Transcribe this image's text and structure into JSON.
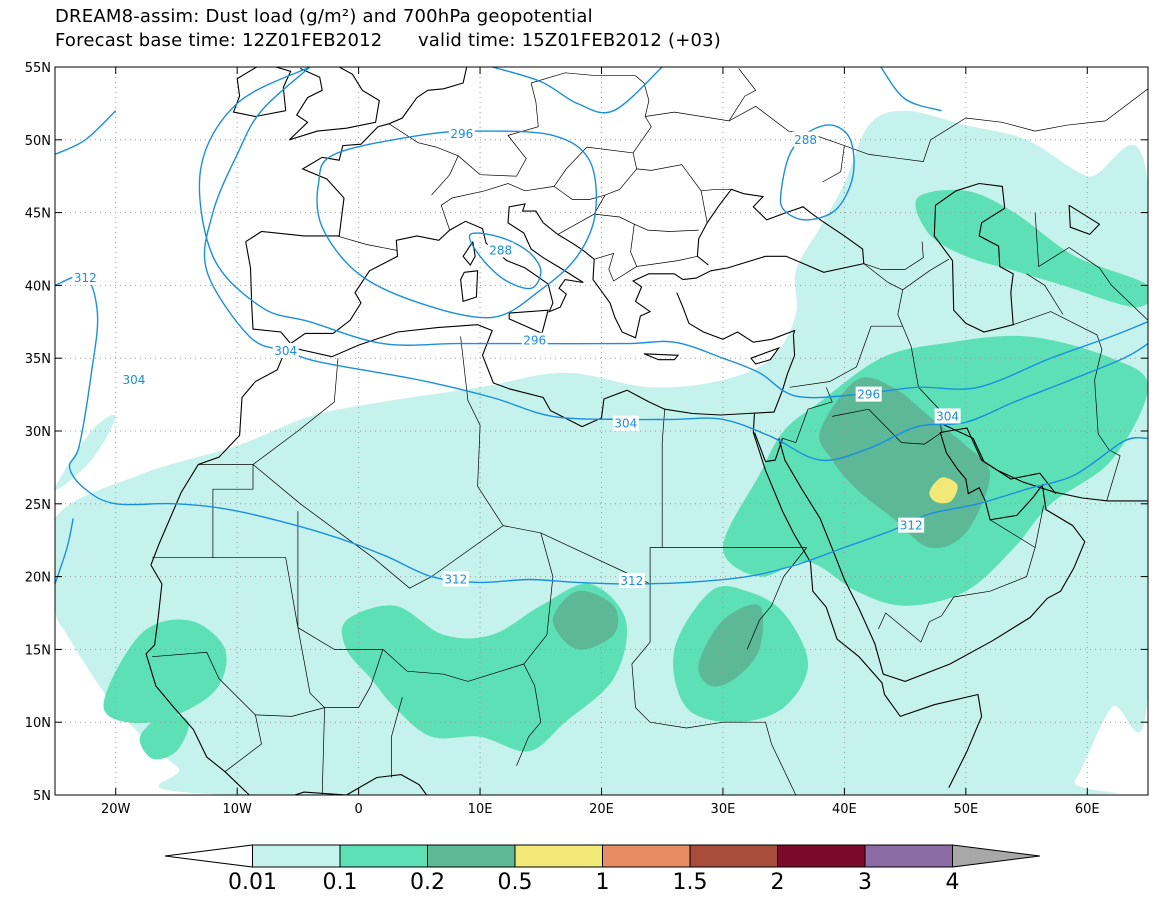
{
  "title": {
    "line1": "DREAM8-assim: Dust load (g/m²) and 700hPa geopotential",
    "line2_base": "Forecast base time: 12Z01FEB2012",
    "line2_valid": "valid time: 15Z01FEB2012 (+03)"
  },
  "axes": {
    "lon_min": -25,
    "lon_max": 65,
    "lat_min": 5,
    "lat_max": 55,
    "x_ticks": [
      {
        "lon": -20,
        "label": "20W"
      },
      {
        "lon": -10,
        "label": "10W"
      },
      {
        "lon": 0,
        "label": "0"
      },
      {
        "lon": 10,
        "label": "10E"
      },
      {
        "lon": 20,
        "label": "20E"
      },
      {
        "lon": 30,
        "label": "30E"
      },
      {
        "lon": 40,
        "label": "40E"
      },
      {
        "lon": 50,
        "label": "50E"
      },
      {
        "lon": 60,
        "label": "60E"
      }
    ],
    "y_ticks": [
      {
        "lat": 55,
        "label": "55N"
      },
      {
        "lat": 50,
        "label": "50N"
      },
      {
        "lat": 45,
        "label": "45N"
      },
      {
        "lat": 40,
        "label": "40N"
      },
      {
        "lat": 35,
        "label": "35N"
      },
      {
        "lat": 30,
        "label": "30N"
      },
      {
        "lat": 25,
        "label": "25N"
      },
      {
        "lat": 20,
        "label": "20N"
      },
      {
        "lat": 15,
        "label": "15N"
      },
      {
        "lat": 10,
        "label": "10N"
      },
      {
        "lat": 5,
        "label": "5N"
      }
    ],
    "grid": "dotted"
  },
  "colorbar": {
    "levels": [
      "0.01",
      "0.1",
      "0.2",
      "0.5",
      "1",
      "1.5",
      "2",
      "3",
      "4"
    ],
    "colors": [
      "#ffffff",
      "#c5f2ec",
      "#5ee0b6",
      "#5cb896",
      "#f2e878",
      "#e88c64",
      "#a84c3c",
      "#7a0a2c",
      "#8c6aa4",
      "#a8a8a8"
    ]
  },
  "dust_colors": {
    "c1": "#c5f2ec",
    "c2": "#5ee0b6",
    "c3": "#5cb896",
    "c4": "#f2e878"
  },
  "contour_color": "#1a8fe0",
  "contour_labels": [
    {
      "text": "296",
      "lon": 8.5,
      "lat": 50.4
    },
    {
      "text": "288",
      "lon": 11.7,
      "lat": 42.4
    },
    {
      "text": "288",
      "lon": 36.8,
      "lat": 50.0
    },
    {
      "text": "296",
      "lon": 14.5,
      "lat": 36.2
    },
    {
      "text": "304",
      "lon": -18.5,
      "lat": 33.5
    },
    {
      "text": "312",
      "lon": -22.5,
      "lat": 40.5
    },
    {
      "text": "304",
      "lon": -6.0,
      "lat": 35.5
    },
    {
      "text": "296",
      "lon": 42.0,
      "lat": 32.5
    },
    {
      "text": "304",
      "lon": 48.5,
      "lat": 31.0
    },
    {
      "text": "304",
      "lon": 22.0,
      "lat": 30.5
    },
    {
      "text": "312",
      "lon": 45.5,
      "lat": 23.5
    },
    {
      "text": "312",
      "lon": 8.0,
      "lat": 19.8
    },
    {
      "text": "312",
      "lon": 22.5,
      "lat": 19.7
    }
  ]
}
